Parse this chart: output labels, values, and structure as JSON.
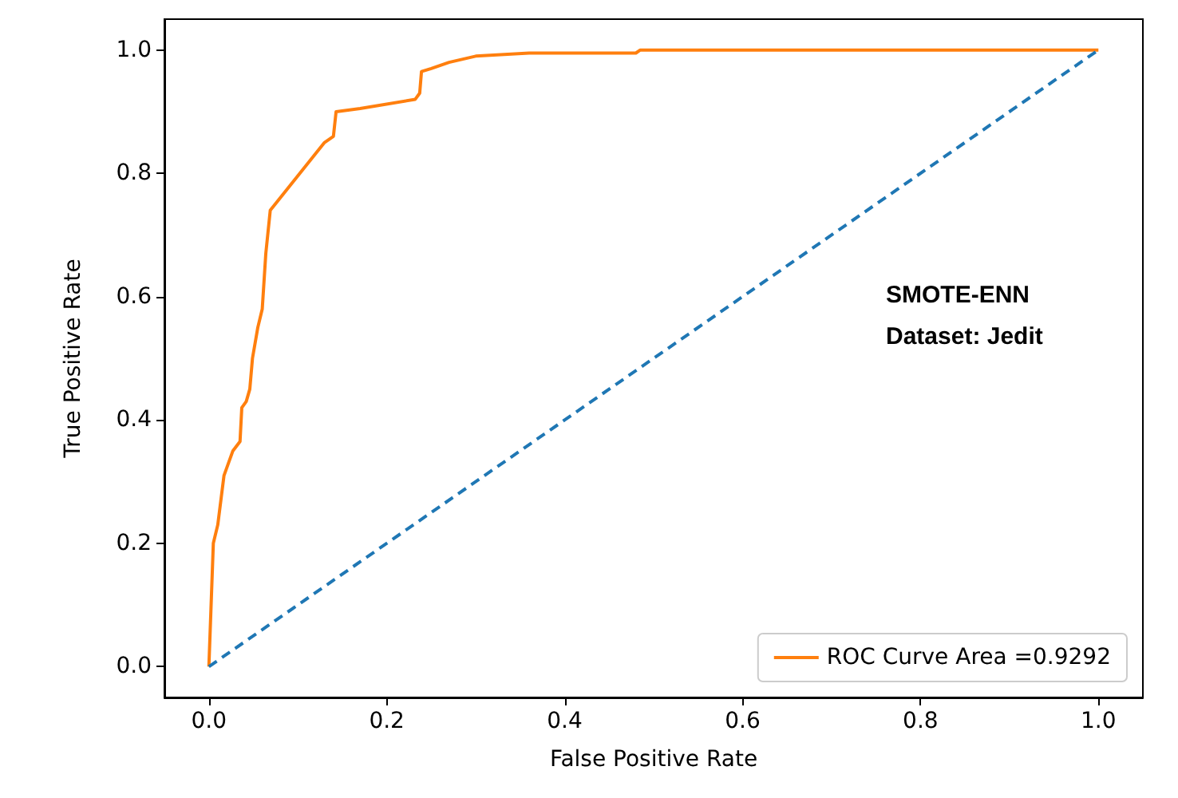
{
  "chart_data": {
    "type": "line",
    "xlabel": "False Positive Rate",
    "ylabel": "True Positive Rate",
    "annotations": [
      "SMOTE-ENN",
      "Dataset: Jedit"
    ],
    "xlim": [
      -0.05,
      1.05
    ],
    "ylim": [
      -0.05,
      1.05
    ],
    "xticks": [
      {
        "value": 0,
        "label": "0.0"
      },
      {
        "value": 0.2,
        "label": "0.2"
      },
      {
        "value": 0.4,
        "label": "0.4"
      },
      {
        "value": 0.6,
        "label": "0.6"
      },
      {
        "value": 0.8,
        "label": "0.8"
      },
      {
        "value": 1,
        "label": "1.0"
      }
    ],
    "yticks": [
      {
        "value": 0,
        "label": "0.0"
      },
      {
        "value": 0.2,
        "label": "0.2"
      },
      {
        "value": 0.4,
        "label": "0.4"
      },
      {
        "value": 0.6,
        "label": "0.6"
      },
      {
        "value": 0.8,
        "label": "0.8"
      },
      {
        "value": 1,
        "label": "1.0"
      }
    ],
    "grid": false,
    "legend": "bottom right",
    "marker": "none",
    "series": [
      {
        "name": "ROC Curve Area =0.9292",
        "color": "#ff7f0e",
        "line_style": "solid",
        "x": [
          0,
          0.005,
          0.01,
          0.017,
          0.022,
          0.027,
          0.035,
          0.037,
          0.042,
          0.046,
          0.049,
          0.055,
          0.06,
          0.064,
          0.069,
          0.13,
          0.14,
          0.143,
          0.17,
          0.232,
          0.237,
          0.239,
          0.25,
          0.27,
          0.3,
          0.36,
          0.48,
          0.485,
          1
        ],
        "values": [
          0,
          0.2,
          0.23,
          0.31,
          0.33,
          0.35,
          0.365,
          0.42,
          0.43,
          0.45,
          0.5,
          0.55,
          0.58,
          0.67,
          0.74,
          0.85,
          0.86,
          0.9,
          0.905,
          0.92,
          0.93,
          0.965,
          0.97,
          0.98,
          0.99,
          0.995,
          0.995,
          1,
          1
        ]
      },
      {
        "color": "#1f77b4",
        "line_style": "dashed",
        "x": [
          0,
          1
        ],
        "values": [
          0,
          1
        ]
      }
    ]
  }
}
